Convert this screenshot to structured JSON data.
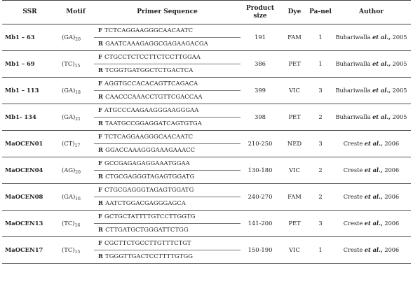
{
  "headers": {
    "ssr": "SSR",
    "motif": "Motif",
    "primer": "Primer Sequence",
    "product": "Product size",
    "dye": "Dye",
    "panel": "Pa-nel",
    "author": "Author"
  },
  "rows": [
    {
      "ssr": "Mb1 – 63",
      "motif": "(GA)",
      "motif_sub": "20",
      "f_dir": "F",
      "f_seq": "TCTCAGGAAGGGCAACAATC",
      "r_dir": "R",
      "r_seq": "GAATCAAAGAGGCGAGAAGACGA",
      "size": "191",
      "dye": "FAM",
      "panel": "1",
      "author_a": "Buhariwalla",
      "author_etal": "et al.,",
      "author_year": "2005"
    },
    {
      "ssr": "Mb1 – 69",
      "motif": "(TC)",
      "motif_sub": "15",
      "f_dir": "F",
      "f_seq": "CTGCCTCTCCTTCTCCTTGGAA",
      "r_dir": "R",
      "r_seq": "TCGGTGATGGCTCTGACTCA",
      "size": "386",
      "dye": "PET",
      "panel": "1",
      "author_a": "Buhariwalla",
      "author_etal": "et al.,",
      "author_year": "2005"
    },
    {
      "ssr": "Mb1 – 113",
      "motif": "(GA)",
      "motif_sub": "18",
      "f_dir": "F",
      "f_seq": "AGGTGCCACACAGTTCAGACA",
      "r_dir": "R",
      "r_seq": "CAACCCAAACCTGTTCGACCAA",
      "size": "399",
      "dye": "VIC",
      "panel": "3",
      "author_a": "Buhariwalla",
      "author_etal": "et al.,",
      "author_year": "2005"
    },
    {
      "ssr": "Mb1- 134",
      "motif": "(GA)",
      "motif_sub": "21",
      "f_dir": "F",
      "f_seq": "ATGCCCAAGAAGGGAAGGGAA",
      "r_dir": "R",
      "r_seq": "TAATGCCGGAGGATCAGTGTGA",
      "size": "398",
      "dye": "PET",
      "panel": "2",
      "author_a": "Buhariwalla",
      "author_etal": "et al.,",
      "author_year": "2005"
    },
    {
      "ssr": "MaOCEN01",
      "motif": "(CT)",
      "motif_sub": "17",
      "f_dir": "F",
      "f_seq": "TCTCAGGAAGGGCAACAATC",
      "r_dir": "R",
      "r_seq": "GGACCAAAGGGAAAGAAACC",
      "size": "210-250",
      "dye": "NED",
      "panel": "3",
      "author_a": "Creste",
      "author_etal": "et al.,",
      "author_year": "2006"
    },
    {
      "ssr": "MaOCEN04",
      "motif": "(AG)",
      "motif_sub": "20",
      "f_dir": "F",
      "f_seq": "GCCGAGAGAGGAAATGGAA",
      "r_dir": "R",
      "r_seq": "CTGCGAGGGTAGAGTGGATG",
      "size": "130-180",
      "dye": "VIC",
      "panel": "2",
      "author_a": "Creste",
      "author_etal": "et al.,",
      "author_year": "2006"
    },
    {
      "ssr": "MaOCEN08",
      "motif": "(GA)",
      "motif_sub": "16",
      "f_dir": "F",
      "f_seq": "CTGCGAGGGTAGAGTGGATG",
      "r_dir": "R",
      "r_seq": "AATCTGGACGAGGGAGCA",
      "size": "240-270",
      "dye": "FAM",
      "panel": "2",
      "author_a": "Creste",
      "author_etal": "et al.,",
      "author_year": "2006"
    },
    {
      "ssr": "MaOCEN13",
      "motif": "(TC)",
      "motif_sub": "16",
      "f_dir": "F",
      "f_seq": "GCTGCTATTTTGTCCTTGGTG",
      "r_dir": "R",
      "r_seq": "CTTGATGCTGGGATTCTGG",
      "size": "141-200",
      "dye": "PET",
      "panel": "3",
      "author_a": "Creste",
      "author_etal": "et al.,",
      "author_year": "2006"
    },
    {
      "ssr": "MaOCEN17",
      "motif": "(TC)",
      "motif_sub": "15",
      "f_dir": "F",
      "f_seq": "CGCTTCTGCCTTGTTTCTGT",
      "r_dir": "R",
      "r_seq": "TGGGTTGACTCCTTTTGTGG",
      "size": "150-190",
      "dye": "VIC",
      "panel": "1",
      "author_a": "Creste",
      "author_etal": "et al.,",
      "author_year": "2006"
    }
  ]
}
